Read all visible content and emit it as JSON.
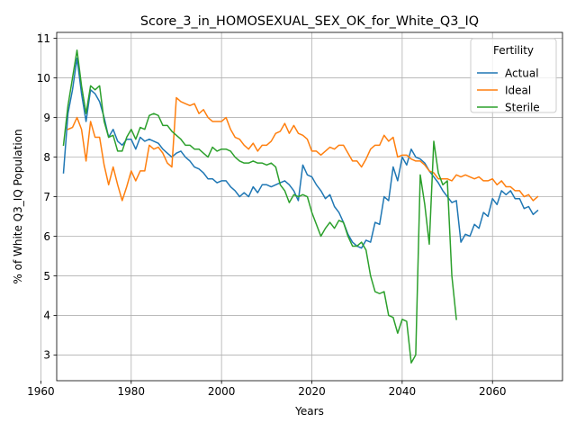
{
  "chart_data": {
    "type": "line",
    "title": "Score_3_in_HOMOSEXUAL_SEX_OK_for_White_Q3_IQ",
    "xlabel": "Years",
    "ylabel": "% of White Q3_IQ Population",
    "xlim": [
      1963.5,
      2075.5
    ],
    "ylim": [
      2.35,
      11.15
    ],
    "xticks": [
      1960,
      1980,
      2000,
      2020,
      2040,
      2060
    ],
    "yticks": [
      3,
      4,
      5,
      6,
      7,
      8,
      9,
      10,
      11
    ],
    "grid": true,
    "legend": {
      "title": "Fertility",
      "placement": "top-right"
    },
    "colors": {
      "Actual": "#1f77b4",
      "Ideal": "#ff7f0e",
      "Sterile": "#2ca02c"
    },
    "series": [
      {
        "name": "Actual",
        "x": [
          1965,
          1966,
          1967,
          1968,
          1969,
          1970,
          1971,
          1972,
          1973,
          1974,
          1975,
          1976,
          1977,
          1978,
          1979,
          1980,
          1981,
          1982,
          1983,
          1984,
          1985,
          1986,
          1987,
          1988,
          1989,
          1990,
          1991,
          1992,
          1993,
          1994,
          1995,
          1996,
          1997,
          1998,
          1999,
          2000,
          2001,
          2002,
          2003,
          2004,
          2005,
          2006,
          2007,
          2008,
          2009,
          2010,
          2011,
          2012,
          2013,
          2014,
          2015,
          2016,
          2017,
          2018,
          2019,
          2020,
          2021,
          2022,
          2023,
          2024,
          2025,
          2026,
          2027,
          2028,
          2029,
          2030,
          2031,
          2032,
          2033,
          2034,
          2035,
          2036,
          2037,
          2038,
          2039,
          2040,
          2041,
          2042,
          2043,
          2044,
          2045,
          2046,
          2047,
          2048,
          2049,
          2050,
          2051,
          2052,
          2053,
          2054,
          2055,
          2056,
          2057,
          2058,
          2059,
          2060,
          2061,
          2062,
          2063,
          2064,
          2065,
          2066,
          2067,
          2068,
          2069,
          2070
        ],
        "y": [
          7.6,
          9.1,
          9.7,
          10.5,
          9.6,
          8.9,
          9.7,
          9.6,
          9.4,
          9.0,
          8.5,
          8.7,
          8.4,
          8.3,
          8.45,
          8.45,
          8.2,
          8.5,
          8.4,
          8.45,
          8.4,
          8.35,
          8.2,
          8.1,
          8.0,
          8.1,
          8.15,
          8.0,
          7.9,
          7.75,
          7.7,
          7.6,
          7.45,
          7.45,
          7.35,
          7.4,
          7.4,
          7.25,
          7.15,
          7.0,
          7.1,
          7.0,
          7.25,
          7.1,
          7.3,
          7.3,
          7.25,
          7.3,
          7.35,
          7.4,
          7.3,
          7.15,
          6.9,
          7.8,
          7.55,
          7.5,
          7.3,
          7.15,
          6.95,
          7.05,
          6.75,
          6.6,
          6.35,
          6.05,
          5.85,
          5.75,
          5.7,
          5.9,
          5.85,
          6.35,
          6.3,
          7.0,
          6.9,
          7.75,
          7.4,
          8.0,
          7.8,
          8.2,
          8.0,
          7.95,
          7.85,
          7.65,
          7.5,
          7.35,
          7.15,
          7.0,
          6.85,
          6.9,
          5.85,
          6.05,
          6.0,
          6.3,
          6.2,
          6.6,
          6.5,
          6.95,
          6.8,
          7.15,
          7.05,
          7.15,
          6.95,
          6.95,
          6.7,
          6.75,
          6.55,
          6.65
        ]
      },
      {
        "name": "Ideal",
        "x": [
          1966,
          1967,
          1968,
          1969,
          1970,
          1971,
          1972,
          1973,
          1974,
          1975,
          1976,
          1977,
          1978,
          1979,
          1980,
          1981,
          1982,
          1983,
          1984,
          1985,
          1986,
          1987,
          1988,
          1989,
          1990,
          1991,
          1992,
          1993,
          1994,
          1995,
          1996,
          1997,
          1998,
          1999,
          2000,
          2001,
          2002,
          2003,
          2004,
          2005,
          2006,
          2007,
          2008,
          2009,
          2010,
          2011,
          2012,
          2013,
          2014,
          2015,
          2016,
          2017,
          2018,
          2019,
          2020,
          2021,
          2022,
          2023,
          2024,
          2025,
          2026,
          2027,
          2028,
          2029,
          2030,
          2031,
          2032,
          2033,
          2034,
          2035,
          2036,
          2037,
          2038,
          2039,
          2040,
          2041,
          2042,
          2043,
          2044,
          2045,
          2046,
          2047,
          2048,
          2049,
          2050,
          2051,
          2052,
          2053,
          2054,
          2055,
          2056,
          2057,
          2058,
          2059,
          2060,
          2061,
          2062,
          2063,
          2064,
          2065,
          2066,
          2067,
          2068,
          2069,
          2070
        ],
        "y": [
          8.7,
          8.75,
          9.0,
          8.7,
          7.9,
          8.9,
          8.5,
          8.5,
          7.8,
          7.3,
          7.75,
          7.3,
          6.9,
          7.25,
          7.65,
          7.4,
          7.65,
          7.65,
          8.3,
          8.2,
          8.25,
          8.1,
          7.85,
          7.75,
          9.5,
          9.4,
          9.35,
          9.3,
          9.35,
          9.1,
          9.2,
          9.0,
          8.9,
          8.9,
          8.9,
          9.0,
          8.7,
          8.5,
          8.45,
          8.3,
          8.2,
          8.35,
          8.15,
          8.3,
          8.3,
          8.4,
          8.6,
          8.65,
          8.85,
          8.6,
          8.8,
          8.6,
          8.55,
          8.45,
          8.15,
          8.15,
          8.05,
          8.15,
          8.25,
          8.2,
          8.3,
          8.3,
          8.1,
          7.9,
          7.9,
          7.75,
          7.95,
          8.2,
          8.3,
          8.3,
          8.55,
          8.4,
          8.5,
          8.0,
          8.05,
          8.05,
          7.95,
          7.9,
          7.9,
          7.8,
          7.65,
          7.6,
          7.45,
          7.45,
          7.45,
          7.4,
          7.55,
          7.5,
          7.55,
          7.5,
          7.45,
          7.5,
          7.4,
          7.4,
          7.45,
          7.3,
          7.4,
          7.25,
          7.25,
          7.15,
          7.15,
          7.0,
          7.05,
          6.9,
          7.0
        ]
      },
      {
        "name": "Sterile",
        "x": [
          1965,
          1966,
          1967,
          1968,
          1969,
          1970,
          1971,
          1972,
          1973,
          1974,
          1975,
          1976,
          1977,
          1978,
          1979,
          1980,
          1981,
          1982,
          1983,
          1984,
          1985,
          1986,
          1987,
          1988,
          1989,
          1990,
          1991,
          1992,
          1993,
          1994,
          1995,
          1996,
          1997,
          1998,
          1999,
          2000,
          2001,
          2002,
          2003,
          2004,
          2005,
          2006,
          2007,
          2008,
          2009,
          2010,
          2011,
          2012,
          2013,
          2014,
          2015,
          2016,
          2017,
          2018,
          2019,
          2020,
          2021,
          2022,
          2023,
          2024,
          2025,
          2026,
          2027,
          2028,
          2029,
          2030,
          2031,
          2032,
          2033,
          2034,
          2035,
          2036,
          2037,
          2038,
          2039,
          2040,
          2041,
          2042,
          2043,
          2044,
          2045,
          2046,
          2047,
          2048,
          2049,
          2050,
          2051,
          2052
        ],
        "y": [
          8.3,
          9.3,
          10.0,
          10.7,
          9.8,
          9.1,
          9.8,
          9.7,
          9.8,
          8.9,
          8.5,
          8.55,
          8.15,
          8.15,
          8.5,
          8.7,
          8.45,
          8.75,
          8.7,
          9.05,
          9.1,
          9.05,
          8.8,
          8.8,
          8.65,
          8.55,
          8.45,
          8.3,
          8.3,
          8.2,
          8.2,
          8.1,
          8.0,
          8.25,
          8.15,
          8.2,
          8.2,
          8.15,
          8.0,
          7.9,
          7.85,
          7.85,
          7.9,
          7.85,
          7.85,
          7.8,
          7.85,
          7.75,
          7.3,
          7.15,
          6.85,
          7.05,
          7.0,
          7.05,
          7.0,
          6.6,
          6.3,
          6.0,
          6.2,
          6.35,
          6.2,
          6.4,
          6.35,
          6.0,
          5.75,
          5.75,
          5.85,
          5.65,
          5.0,
          4.6,
          4.55,
          4.6,
          4.0,
          3.95,
          3.55,
          3.9,
          3.85,
          2.8,
          3.0,
          7.55,
          6.8,
          5.8,
          8.4,
          7.6,
          7.3,
          7.4,
          5.0,
          3.9
        ]
      }
    ]
  }
}
